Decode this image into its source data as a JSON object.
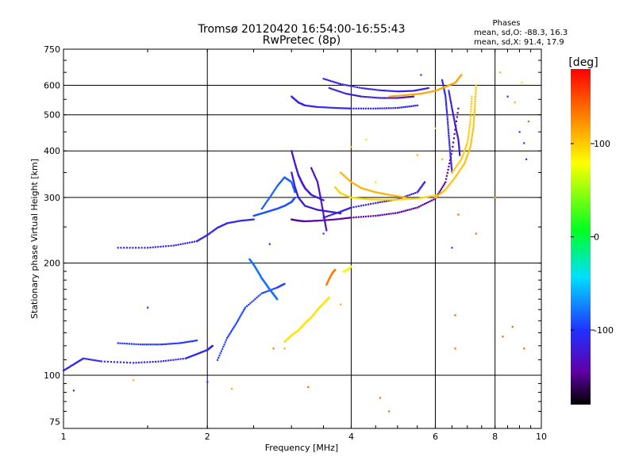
{
  "chart_data": {
    "type": "scatter",
    "title": "Tromsø 20120420 16:54:00-16:55:43",
    "subtitle": "RwPretec (8p)",
    "stats": {
      "heading": "Phases",
      "line1": "mean, sd,O:  -88.3, 16.3",
      "line2": "mean, sd,X:  91.4, 17.9"
    },
    "xlabel": "Frequency [MHz]",
    "ylabel": "Stationary phase Virtual Height [km]",
    "xscale": "log",
    "yscale": "log",
    "xlim": [
      1,
      10
    ],
    "ylim": [
      72,
      750
    ],
    "grid": true,
    "xticks": [
      1,
      2,
      4,
      6,
      8,
      10
    ],
    "xtick_labels": [
      "1",
      "2",
      "4",
      "6",
      "8",
      "10"
    ],
    "xgrid": [
      2,
      4,
      6,
      8
    ],
    "yticks": [
      75,
      100,
      200,
      300,
      400,
      500,
      600,
      750
    ],
    "ytick_labels": [
      "75",
      "100",
      "200",
      "300",
      "400",
      "500",
      "600",
      "750"
    ],
    "ygrid": [
      100,
      200,
      300,
      400,
      500,
      600
    ],
    "colorbar": {
      "label": "[deg]",
      "min": -180,
      "max": 180,
      "ticks": [
        100,
        0,
        -100
      ],
      "tick_labels": [
        "100",
        "0",
        "-100"
      ]
    },
    "traces": [
      {
        "phase": -110,
        "x": [
          1.0,
          1.05,
          1.1,
          1.2,
          1.4,
          1.6,
          1.8,
          1.9,
          2.0,
          2.05
        ],
        "y": [
          103,
          107,
          111,
          109,
          108,
          109,
          111,
          114,
          117,
          120
        ]
      },
      {
        "phase": -100,
        "x": [
          1.3,
          1.45,
          1.6,
          1.75,
          1.9
        ],
        "y": [
          122,
          121,
          121,
          122,
          124
        ]
      },
      {
        "phase": -110,
        "x": [
          1.3,
          1.5,
          1.7,
          1.9,
          2.0,
          2.1,
          2.2,
          2.35,
          2.5
        ],
        "y": [
          220,
          220,
          223,
          229,
          238,
          249,
          256,
          260,
          262
        ]
      },
      {
        "phase": -95,
        "x": [
          2.1,
          2.2,
          2.3,
          2.4,
          2.6,
          2.8,
          2.9
        ],
        "y": [
          110,
          126,
          138,
          152,
          166,
          172,
          176
        ]
      },
      {
        "phase": -80,
        "x": [
          2.45,
          2.5,
          2.55,
          2.6,
          2.65,
          2.7,
          2.75,
          2.8
        ],
        "y": [
          205,
          198,
          190,
          182,
          176,
          170,
          165,
          160
        ]
      },
      {
        "phase": -85,
        "x": [
          2.6,
          2.7,
          2.8,
          2.9,
          3.0,
          3.05
        ],
        "y": [
          280,
          300,
          322,
          340,
          330,
          310
        ]
      },
      {
        "phase": -90,
        "x": [
          2.5,
          2.6,
          2.7,
          2.8,
          2.9,
          3.0,
          3.05
        ],
        "y": [
          268,
          272,
          276,
          280,
          285,
          292,
          300
        ]
      },
      {
        "phase": -145,
        "x": [
          3.0,
          3.1,
          3.2,
          3.4,
          3.7,
          4.0,
          4.5,
          5.0,
          5.5,
          6.0,
          6.3,
          6.5,
          6.7
        ],
        "y": [
          262,
          260,
          259,
          260,
          262,
          265,
          268,
          273,
          282,
          298,
          330,
          400,
          520
        ]
      },
      {
        "phase": -120,
        "x": [
          3.0,
          3.05,
          3.1,
          3.2,
          3.4,
          3.6,
          3.8
        ],
        "y": [
          350,
          320,
          300,
          285,
          278,
          275,
          272
        ]
      },
      {
        "phase": -125,
        "x": [
          3.0,
          3.05,
          3.1,
          3.15,
          3.2,
          3.3,
          3.5
        ],
        "y": [
          400,
          370,
          345,
          330,
          318,
          305,
          295
        ]
      },
      {
        "phase": -130,
        "x": [
          3.3,
          3.4,
          3.45,
          3.5,
          3.55
        ],
        "y": [
          360,
          330,
          300,
          270,
          245
        ]
      },
      {
        "phase": -115,
        "x": [
          3.5,
          3.8,
          4.0,
          4.5,
          5.0,
          5.5,
          5.7
        ],
        "y": [
          265,
          275,
          282,
          290,
          297,
          310,
          330
        ]
      },
      {
        "phase": -110,
        "x": [
          3.0,
          3.1,
          3.2,
          3.4,
          3.7,
          4.0,
          4.5,
          5.0,
          5.5
        ],
        "y": [
          560,
          540,
          530,
          525,
          522,
          520,
          520,
          522,
          530
        ]
      },
      {
        "phase": -115,
        "x": [
          3.5,
          3.8,
          4.2,
          4.6,
          5.0,
          5.4,
          5.8
        ],
        "y": [
          625,
          605,
          590,
          582,
          578,
          580,
          590
        ]
      },
      {
        "phase": -120,
        "x": [
          3.6,
          3.9,
          4.2,
          4.6,
          5.0,
          5.4
        ],
        "y": [
          590,
          570,
          560,
          555,
          555,
          560
        ]
      },
      {
        "phase": -110,
        "x": [
          6.2,
          6.3,
          6.35,
          6.4,
          6.45,
          6.5
        ],
        "y": [
          620,
          560,
          500,
          440,
          390,
          350
        ]
      },
      {
        "phase": -120,
        "x": [
          6.4,
          6.5,
          6.6,
          6.7,
          6.75
        ],
        "y": [
          580,
          520,
          470,
          430,
          390
        ]
      },
      {
        "phase": 95,
        "x": [
          3.7,
          3.8,
          4.0,
          4.3,
          4.6,
          5.0,
          5.5,
          6.0
        ],
        "y": [
          320,
          308,
          300,
          297,
          296,
          296,
          298,
          304
        ]
      },
      {
        "phase": 110,
        "x": [
          3.8,
          4.0,
          4.2,
          4.5,
          4.8,
          5.2
        ],
        "y": [
          350,
          330,
          318,
          310,
          305,
          300
        ]
      },
      {
        "phase": 105,
        "x": [
          6.0,
          6.3,
          6.6,
          6.9,
          7.1,
          7.2,
          7.25,
          7.3
        ],
        "y": [
          300,
          315,
          340,
          370,
          410,
          460,
          520,
          600
        ]
      },
      {
        "phase": 100,
        "x": [
          6.5,
          6.8,
          7.0,
          7.1,
          7.15
        ],
        "y": [
          350,
          380,
          420,
          480,
          560
        ]
      },
      {
        "phase": 115,
        "x": [
          4.8,
          5.2,
          5.6,
          6.0,
          6.3,
          6.6,
          6.8
        ],
        "y": [
          560,
          565,
          570,
          580,
          595,
          610,
          640
        ]
      },
      {
        "phase": 90,
        "x": [
          2.9,
          3.0,
          3.1,
          3.2,
          3.3,
          3.4,
          3.5,
          3.6
        ],
        "y": [
          123,
          128,
          132,
          138,
          143,
          150,
          156,
          162
        ]
      },
      {
        "phase": 130,
        "x": [
          3.55,
          3.6,
          3.65,
          3.7
        ],
        "y": [
          175,
          182,
          188,
          192
        ]
      },
      {
        "phase": 75,
        "x": [
          3.85,
          3.9,
          3.95,
          4.0
        ],
        "y": [
          190,
          191,
          193,
          196
        ]
      }
    ],
    "points": [
      {
        "phase": 140,
        "x": [
          2.75,
          3.25,
          4.6,
          8.7,
          8.3,
          9.2,
          9.4,
          6.6,
          6.6,
          6.7,
          4.8,
          7.3
        ],
        "y": [
          118,
          93,
          87,
          135,
          127,
          118,
          480,
          145,
          118,
          270,
          80,
          240
        ]
      },
      {
        "phase": -100,
        "x": [
          1.05,
          1.5,
          2.0,
          2.7,
          3.5,
          8.5,
          9.0,
          9.2,
          9.3,
          5.6,
          6.5
        ],
        "y": [
          91,
          152,
          96,
          225,
          240,
          560,
          450,
          420,
          380,
          640,
          220
        ]
      },
      {
        "phase": 110,
        "x": [
          1.4,
          2.25,
          2.9,
          3.8,
          6.2,
          8.0,
          8.2,
          8.8,
          4.0,
          5.5
        ],
        "y": [
          97,
          92,
          118,
          155,
          380,
          300,
          650,
          540,
          410,
          390
        ]
      },
      {
        "phase": 60,
        "x": [
          4.5,
          6.0,
          9.1,
          4.3
        ],
        "y": [
          330,
          460,
          610,
          430
        ]
      }
    ]
  }
}
